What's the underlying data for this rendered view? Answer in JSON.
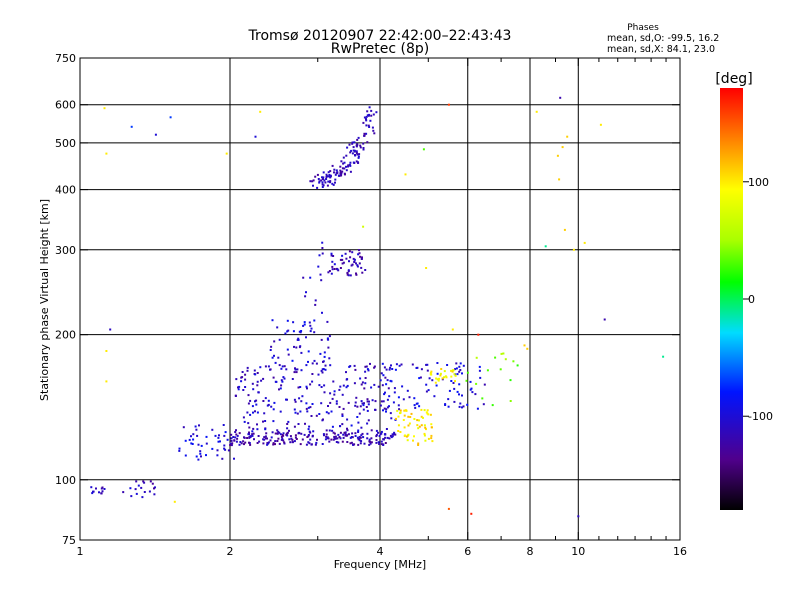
{
  "chart_data": {
    "type": "scatter",
    "title": "Tromsø 20120907 22:42:00–22:43:43",
    "subtitle": "RwPretec (8p)",
    "xlabel": "Frequency [MHz]",
    "ylabel": "Stationary phase Virtual Height [km]",
    "x_scale": "log",
    "y_scale": "log",
    "xlim": [
      1,
      16
    ],
    "ylim": [
      75,
      750
    ],
    "x_ticks": [
      {
        "value": 1,
        "label": "1"
      },
      {
        "value": 2,
        "label": "2"
      },
      {
        "value": 4,
        "label": "4"
      },
      {
        "value": 6,
        "label": "6"
      },
      {
        "value": 8,
        "label": "8"
      },
      {
        "value": 10,
        "label": "10"
      },
      {
        "value": 16,
        "label": "16"
      }
    ],
    "x_grid": [
      2,
      4,
      6,
      8,
      10
    ],
    "y_ticks": [
      {
        "value": 75,
        "label": "75"
      },
      {
        "value": 100,
        "label": "100"
      },
      {
        "value": 200,
        "label": "200"
      },
      {
        "value": 300,
        "label": "300"
      },
      {
        "value": 400,
        "label": "400"
      },
      {
        "value": 500,
        "label": "500"
      },
      {
        "value": 600,
        "label": "600"
      },
      {
        "value": 750,
        "label": "750"
      }
    ],
    "y_grid": [
      100,
      200,
      300,
      400,
      500,
      600
    ],
    "grid": true,
    "stats": {
      "header": "Phases",
      "line1": "mean, sd,O: -99.5, 16.2",
      "line2": "mean, sd,X:  84.1, 23.0"
    },
    "colorbar": {
      "label": "[deg]",
      "range": [
        -180,
        180
      ],
      "ticks": [
        {
          "value": 100,
          "label": "100"
        },
        {
          "value": 0,
          "label": "0"
        },
        {
          "value": -100,
          "label": "-100"
        }
      ]
    },
    "clusters": [
      {
        "f_min": 1.04,
        "f_max": 1.12,
        "h_min": 93,
        "h_max": 97,
        "n": 12,
        "phase": -110
      },
      {
        "f_min": 1.22,
        "f_max": 1.42,
        "h_min": 91,
        "h_max": 103,
        "n": 18,
        "phase": -110
      },
      {
        "f_min": 1.58,
        "f_max": 2.05,
        "h_min": 110,
        "h_max": 130,
        "n": 45,
        "phase": -100
      },
      {
        "f_min": 2.0,
        "f_max": 4.3,
        "h_min": 118,
        "h_max": 126,
        "n": 220,
        "phase": -118
      },
      {
        "f_min": 2.05,
        "f_max": 4.3,
        "h_min": 126,
        "h_max": 175,
        "n": 260,
        "phase": -108
      },
      {
        "f_min": 2.4,
        "f_max": 3.2,
        "h_min": 175,
        "h_max": 215,
        "n": 55,
        "phase": -100
      },
      {
        "f_min": 2.8,
        "f_max": 3.1,
        "h_min": 215,
        "h_max": 320,
        "n": 14,
        "phase": -110
      },
      {
        "f_min": 3.15,
        "f_max": 3.75,
        "h_min": 265,
        "h_max": 300,
        "n": 55,
        "phase": -115
      },
      {
        "f_min": 4.0,
        "f_max": 6.5,
        "h_min": 140,
        "h_max": 175,
        "n": 90,
        "phase": -100
      },
      {
        "f_min": 4.3,
        "f_max": 5.1,
        "h_min": 118,
        "h_max": 140,
        "n": 60,
        "phase": 100
      },
      {
        "f_min": 5.0,
        "f_max": 5.7,
        "h_min": 158,
        "h_max": 170,
        "n": 25,
        "phase": 95
      },
      {
        "f_min": 5.8,
        "f_max": 7.6,
        "h_min": 140,
        "h_max": 185,
        "n": 16,
        "phase": 40
      }
    ],
    "arc": {
      "f_start": 2.95,
      "f_end": 3.9,
      "h_start": 415,
      "h_end": 580,
      "n": 140,
      "phase": -115
    },
    "points": [
      {
        "x": 1.12,
        "y": 590,
        "phase": 100
      },
      {
        "x": 1.13,
        "y": 475,
        "phase": 100
      },
      {
        "x": 1.13,
        "y": 185,
        "phase": 100
      },
      {
        "x": 1.13,
        "y": 160,
        "phase": 100
      },
      {
        "x": 1.15,
        "y": 205,
        "phase": -110
      },
      {
        "x": 1.27,
        "y": 540,
        "phase": -70
      },
      {
        "x": 1.42,
        "y": 520,
        "phase": -100
      },
      {
        "x": 1.52,
        "y": 565,
        "phase": -70
      },
      {
        "x": 1.55,
        "y": 90,
        "phase": 100
      },
      {
        "x": 1.97,
        "y": 475,
        "phase": 100
      },
      {
        "x": 2.25,
        "y": 515,
        "phase": -100
      },
      {
        "x": 2.3,
        "y": 580,
        "phase": 100
      },
      {
        "x": 3.7,
        "y": 335,
        "phase": 70
      },
      {
        "x": 4.5,
        "y": 430,
        "phase": 100
      },
      {
        "x": 4.9,
        "y": 485,
        "phase": 30
      },
      {
        "x": 4.95,
        "y": 275,
        "phase": 100
      },
      {
        "x": 5.5,
        "y": 600,
        "phase": 160
      },
      {
        "x": 5.5,
        "y": 87,
        "phase": 150
      },
      {
        "x": 5.6,
        "y": 205,
        "phase": 100
      },
      {
        "x": 6.1,
        "y": 85,
        "phase": 170
      },
      {
        "x": 6.3,
        "y": 200,
        "phase": 170
      },
      {
        "x": 7.8,
        "y": 190,
        "phase": 110
      },
      {
        "x": 7.9,
        "y": 187,
        "phase": 110
      },
      {
        "x": 8.25,
        "y": 580,
        "phase": 100
      },
      {
        "x": 8.6,
        "y": 305,
        "phase": -10
      },
      {
        "x": 9.1,
        "y": 470,
        "phase": 110
      },
      {
        "x": 9.15,
        "y": 420,
        "phase": 110
      },
      {
        "x": 9.2,
        "y": 620,
        "phase": -120
      },
      {
        "x": 9.3,
        "y": 490,
        "phase": 110
      },
      {
        "x": 9.4,
        "y": 330,
        "phase": 110
      },
      {
        "x": 9.5,
        "y": 515,
        "phase": 110
      },
      {
        "x": 9.8,
        "y": 300,
        "phase": 100
      },
      {
        "x": 10.0,
        "y": 84,
        "phase": -110
      },
      {
        "x": 10.3,
        "y": 310,
        "phase": 100
      },
      {
        "x": 11.1,
        "y": 545,
        "phase": 100
      },
      {
        "x": 11.3,
        "y": 215,
        "phase": -120
      },
      {
        "x": 14.8,
        "y": 180,
        "phase": -10
      }
    ]
  }
}
